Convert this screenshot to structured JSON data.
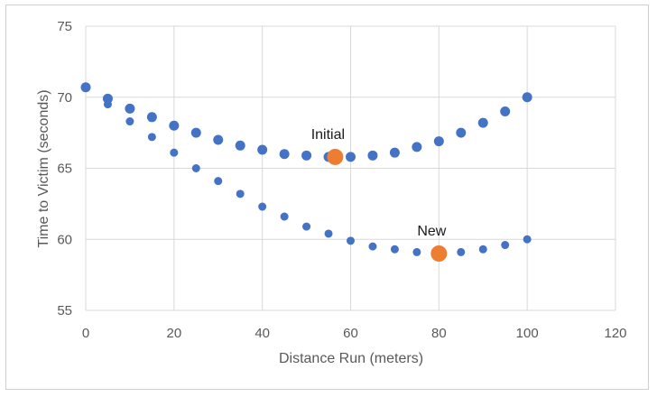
{
  "chart_data": {
    "type": "scatter",
    "title": "",
    "xlabel": "Distance Run (meters)",
    "ylabel": "Time to Victim (seconds)",
    "xlim": [
      0,
      120
    ],
    "ylim": [
      55,
      75
    ],
    "x_ticks": [
      0,
      20,
      40,
      60,
      80,
      100,
      120
    ],
    "y_ticks": [
      55,
      60,
      65,
      70,
      75
    ],
    "grid": true,
    "legend": "none",
    "colors": {
      "points": "#4472C4",
      "highlight": "#ED7D31",
      "grid": "#d9d9d9"
    },
    "series": [
      {
        "x": [
          0,
          5,
          10,
          15,
          20,
          25,
          30,
          35,
          40,
          45,
          50,
          55,
          60,
          65,
          70,
          75,
          80,
          85,
          90,
          95,
          100
        ],
        "values": [
          70.7,
          69.9,
          69.2,
          68.6,
          68.0,
          67.5,
          67.0,
          66.6,
          66.3,
          66.0,
          65.9,
          65.8,
          65.8,
          65.9,
          66.1,
          66.5,
          66.9,
          67.5,
          68.2,
          69.0,
          70.0
        ]
      },
      {
        "x": [
          5,
          10,
          15,
          20,
          25,
          30,
          35,
          40,
          45,
          50,
          55,
          60,
          65,
          70,
          75,
          80,
          85,
          90,
          95,
          100
        ],
        "values": [
          69.5,
          68.3,
          67.2,
          66.1,
          65.0,
          64.1,
          63.2,
          62.3,
          61.6,
          60.9,
          60.4,
          59.9,
          59.5,
          59.3,
          59.1,
          59.0,
          59.1,
          59.3,
          59.6,
          60.0
        ]
      }
    ],
    "highlights": [
      {
        "label": "Initial",
        "x": 56.5,
        "y": 65.8
      },
      {
        "label": "New",
        "x": 80,
        "y": 59.0
      }
    ]
  }
}
